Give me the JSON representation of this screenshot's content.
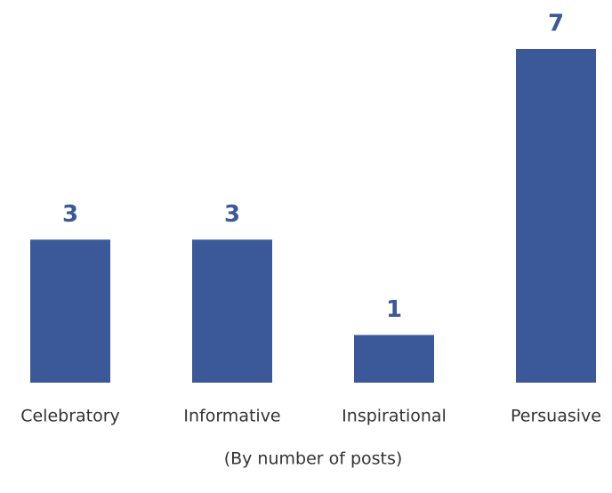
{
  "chart_data": {
    "type": "bar",
    "categories": [
      "Celebratory",
      "Informative",
      "Inspirational",
      "Persuasive"
    ],
    "values": [
      3,
      3,
      1,
      7
    ],
    "color": "#3b5998",
    "xlabel": "(By number of posts)"
  }
}
